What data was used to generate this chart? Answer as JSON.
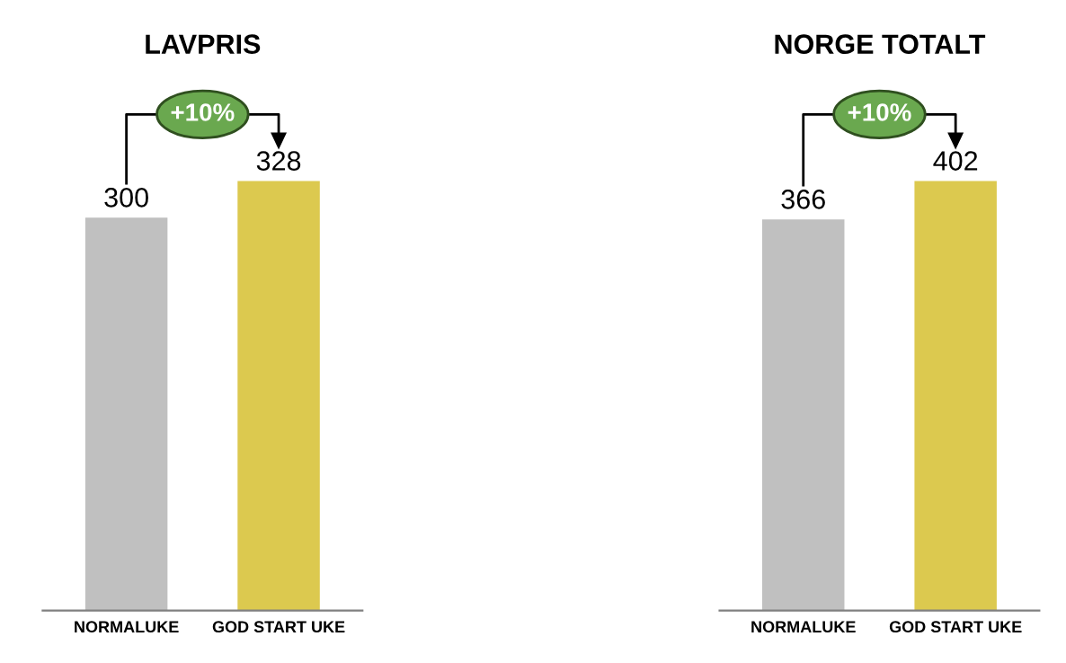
{
  "chart_data": [
    {
      "type": "bar",
      "title": "LAVPRIS",
      "categories": [
        "NORMALUKE",
        "GOD START UKE"
      ],
      "values": [
        300,
        328
      ],
      "colors": [
        "#c0c0c0",
        "#dcc94f"
      ],
      "data_labels": true,
      "annotations": [
        "+10%"
      ]
    },
    {
      "type": "bar",
      "title": "NORGE TOTALT",
      "categories": [
        "NORMALUKE",
        "GOD START UKE"
      ],
      "values": [
        366,
        402
      ],
      "colors": [
        "#c0c0c0",
        "#dcc94f"
      ],
      "data_labels": true,
      "annotations": [
        "+10%"
      ]
    }
  ]
}
